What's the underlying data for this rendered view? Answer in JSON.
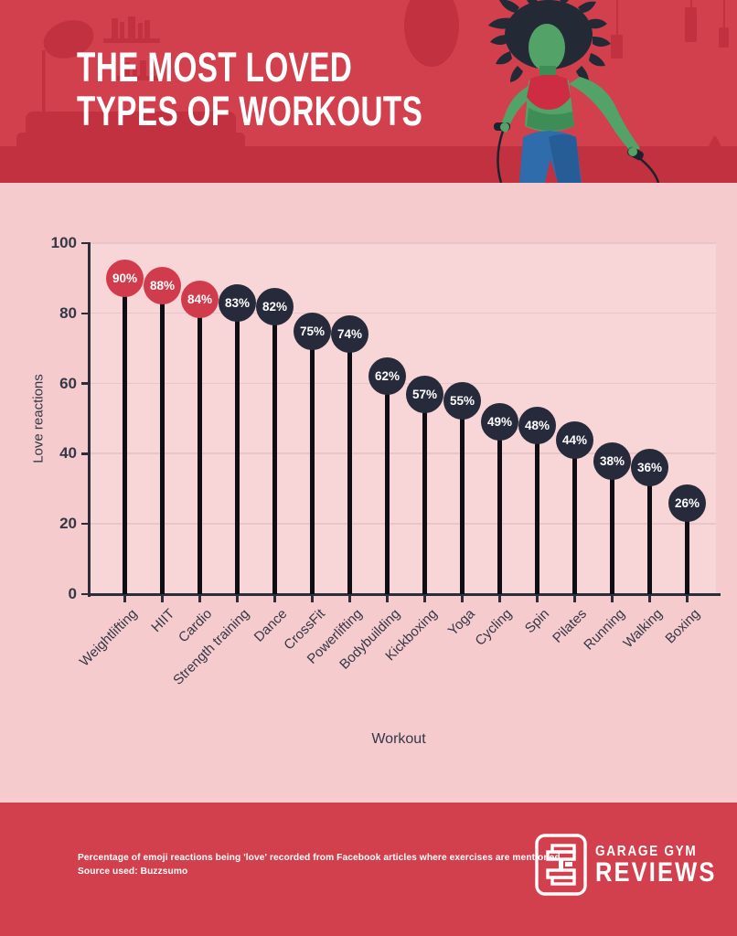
{
  "header": {
    "title_line1": "THE MOST LOVED",
    "title_line2": "TYPES OF WORKOUTS"
  },
  "chart_data": {
    "type": "lollipop-bar",
    "title": "The most loved types of workouts",
    "xlabel": "Workout",
    "ylabel": "Love reactions",
    "unit": "%",
    "ylim": [
      0,
      100
    ],
    "yticks": [
      0,
      20,
      40,
      60,
      80,
      100
    ],
    "grid": "horizontal",
    "categories": [
      "Weightlifting",
      "HIIT",
      "Cardio",
      "Strength training",
      "Dance",
      "CrossFit",
      "Powerlifting",
      "Bodybuilding",
      "Kickboxing",
      "Yoga",
      "Cycling",
      "Spin",
      "Pilates",
      "Running",
      "Walking",
      "Boxing"
    ],
    "values": [
      90,
      88,
      84,
      83,
      82,
      75,
      74,
      62,
      57,
      55,
      49,
      48,
      44,
      38,
      36,
      26
    ],
    "highlight_count": 3,
    "highlight_color": "#d13c4c",
    "dot_color": "#262a3a"
  },
  "footer": {
    "note_line1": "Percentage of emoji reactions being 'love' recorded from Facebook articles where exercises are mentioned.",
    "note_line2": "Source used: Buzzsumo",
    "logo_line1": "GARAGE GYM",
    "logo_line2": "REVIEWS"
  },
  "colors": {
    "header_bg": "#d2404e",
    "header_deco": "#c23140",
    "panel_bg": "#f6cbcd",
    "plot_bg": "#f8d6d7",
    "gridline": "#eac5c7",
    "axis": "#2b2d3a",
    "stem": "#0e0e14",
    "text_navy": "#343747",
    "footer_bg": "#d2404e",
    "white": "#ffffff"
  }
}
